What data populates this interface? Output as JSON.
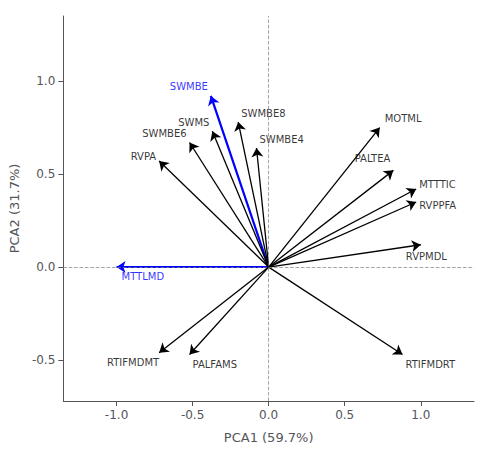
{
  "chart_data": {
    "type": "arrows",
    "labels": [
      "SWMBE",
      "MTTLMD",
      "SWMBE8",
      "SWMS",
      "SWMBE6",
      "RVPA",
      "SWMBE4",
      "MOTML",
      "PALTEA",
      "MTTTIC",
      "RVPPFA",
      "RVPMDL",
      "RTIFMDMT",
      "PALFAMS",
      "RTIFMDRT"
    ],
    "x": [
      -0.38,
      -1.0,
      -0.2,
      -0.37,
      -0.52,
      -0.72,
      -0.08,
      0.73,
      0.82,
      0.97,
      0.97,
      1.0,
      -0.72,
      -0.52,
      0.88
    ],
    "y": [
      0.92,
      0.0,
      0.78,
      0.73,
      0.67,
      0.57,
      0.64,
      0.75,
      0.52,
      0.42,
      0.35,
      0.12,
      -0.46,
      -0.47,
      -0.47
    ],
    "colors": [
      "blue",
      "blue",
      "black",
      "black",
      "black",
      "black",
      "black",
      "black",
      "black",
      "black",
      "black",
      "black",
      "black",
      "black",
      "black"
    ],
    "xlabel": "PCA1 (59.7%)",
    "ylabel": "PCA2 (31.7%)",
    "xlim": [
      -1.35,
      1.35
    ],
    "ylim": [
      -0.72,
      1.35
    ],
    "xticks": [
      {
        "value": -1.0,
        "label": "-1.0"
      },
      -0.5,
      {
        "value": 0.0,
        "label": "0.0"
      },
      0.5,
      {
        "value": 1.0,
        "label": "1.0"
      }
    ],
    "yticks": [
      -0.5,
      {
        "value": 0.0,
        "label": "0.0"
      },
      0.5,
      {
        "value": 1.0,
        "label": "1.0"
      }
    ],
    "grid": false
  }
}
